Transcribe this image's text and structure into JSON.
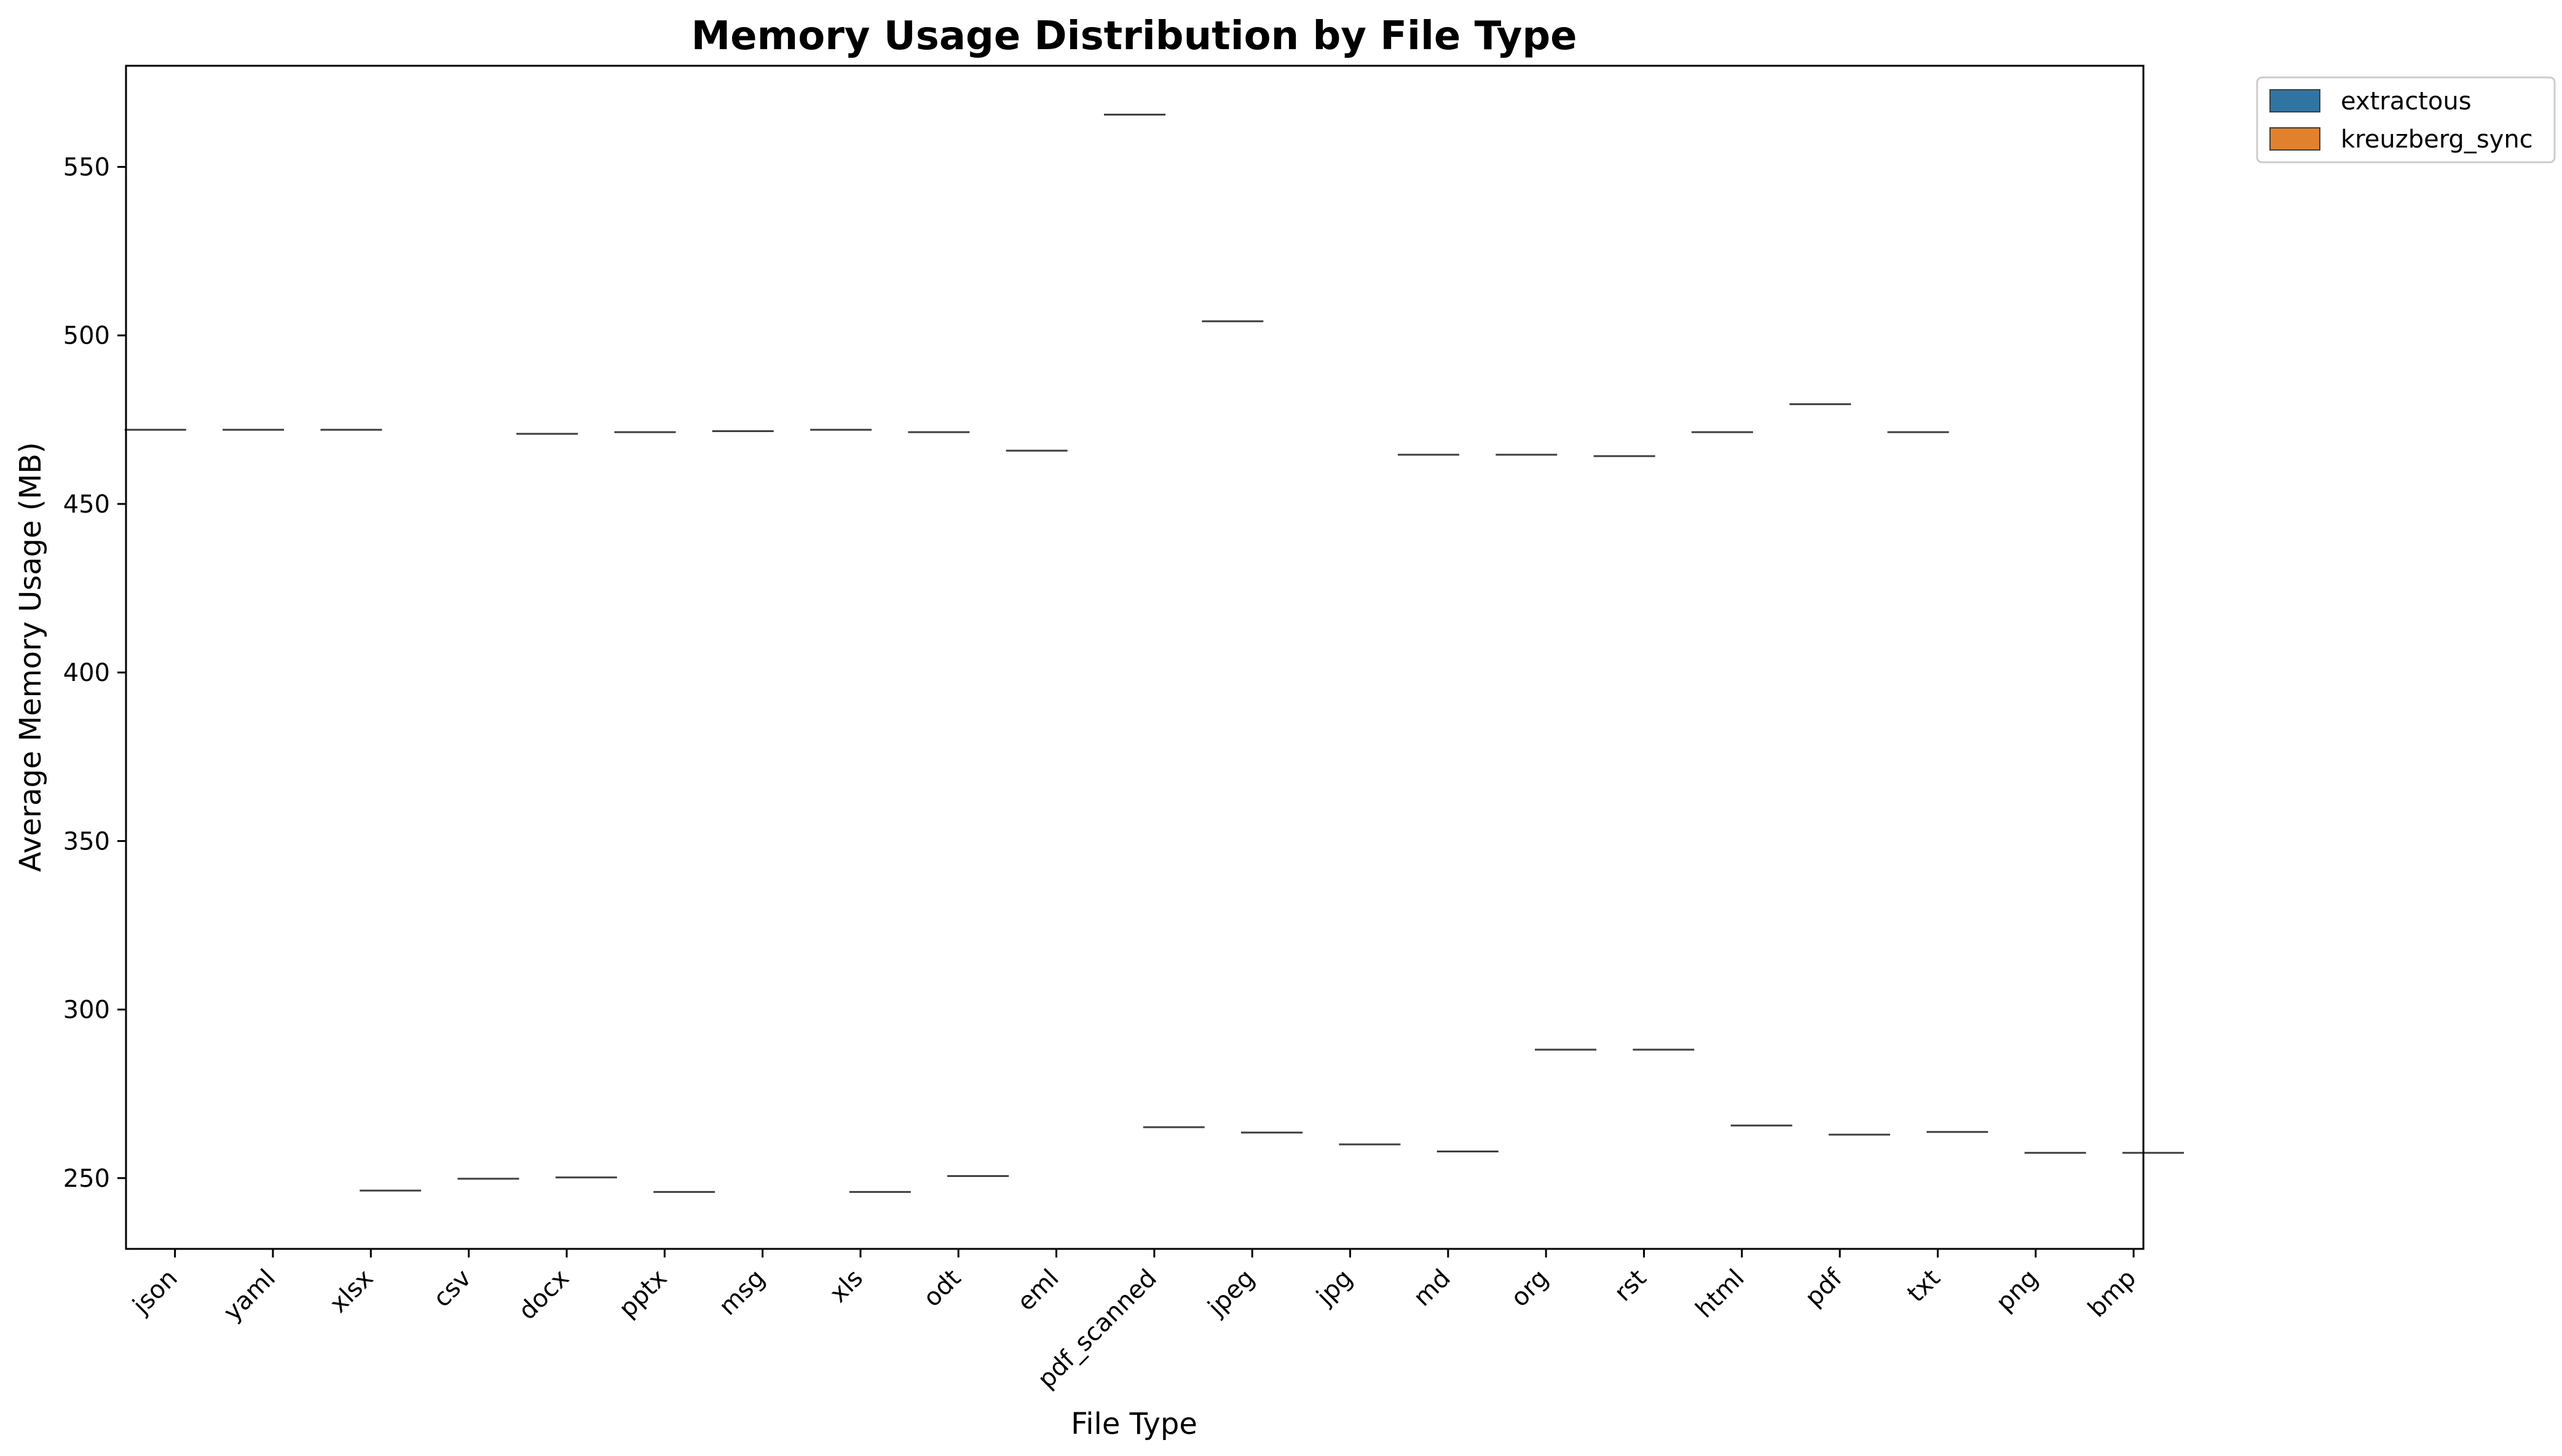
{
  "chart_data": {
    "type": "violin",
    "title": "Memory Usage Distribution by File Type",
    "xlabel": "File Type",
    "ylabel": "Average Memory Usage (MB)",
    "ylim": [
      229,
      580
    ],
    "yticks": [
      250,
      300,
      350,
      400,
      450,
      500,
      550
    ],
    "grid": false,
    "legend_position": "outside top-right",
    "categories": [
      "json",
      "yaml",
      "xlsx",
      "csv",
      "docx",
      "pptx",
      "msg",
      "xls",
      "odt",
      "eml",
      "pdf_scanned",
      "jpeg",
      "jpg",
      "md",
      "org",
      "rst",
      "html",
      "pdf",
      "txt",
      "png",
      "bmp"
    ],
    "series": [
      {
        "name": "extractous",
        "color": "#3274a1",
        "values": [
          472.0,
          472.0,
          472.0,
          null,
          470.8,
          471.3,
          471.6,
          472.0,
          471.3,
          465.8,
          565.5,
          504.2,
          null,
          464.6,
          464.6,
          464.2,
          471.3,
          479.6,
          471.3,
          null,
          null
        ]
      },
      {
        "name": "kreuzberg_sync",
        "color": "#e1812c",
        "values": [
          null,
          null,
          246.3,
          249.8,
          250.2,
          245.9,
          null,
          245.9,
          250.6,
          null,
          265.1,
          263.5,
          260.0,
          257.9,
          288.1,
          288.1,
          265.6,
          262.9,
          263.7,
          257.5,
          257.5
        ]
      }
    ]
  }
}
